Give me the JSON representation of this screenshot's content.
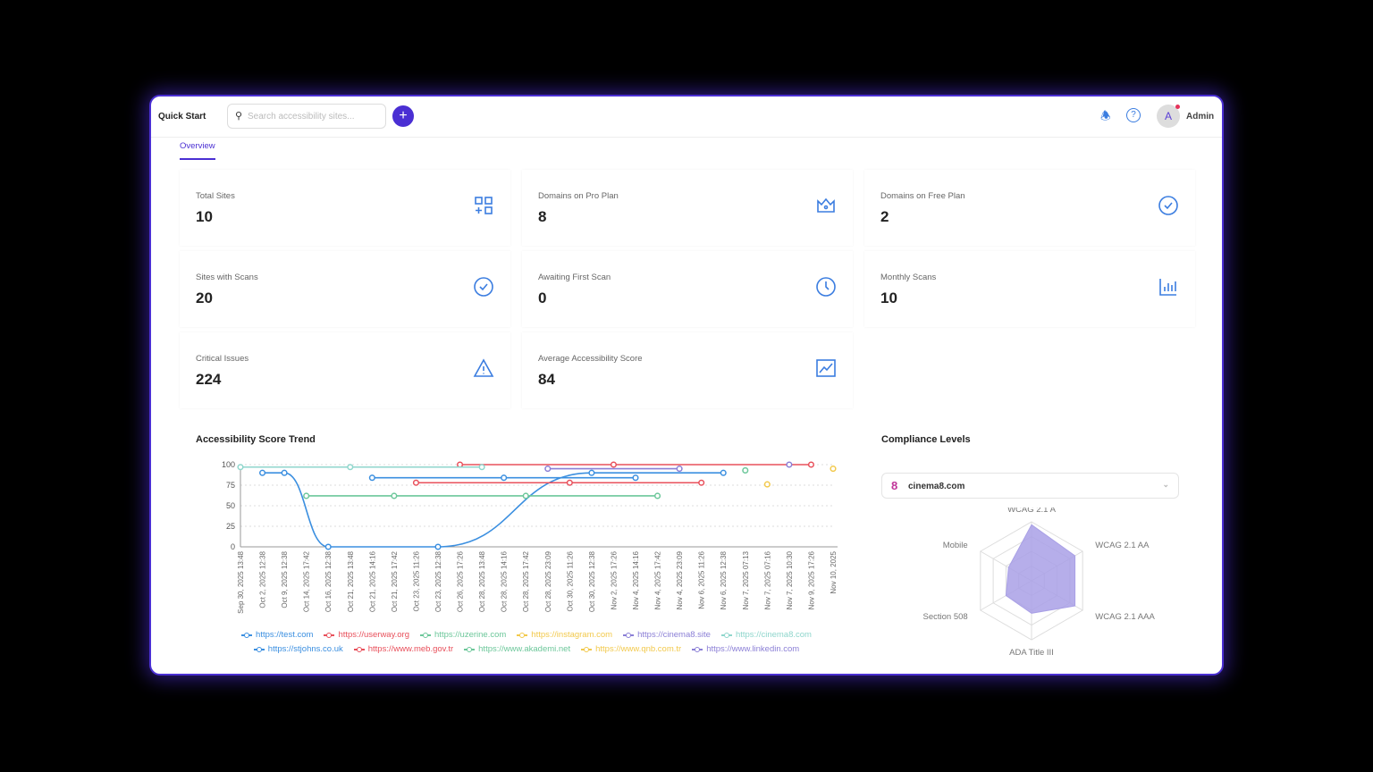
{
  "topbar": {
    "quick_start": "Quick Start",
    "search_placeholder": "Search accessibility sites...",
    "user": "Admin",
    "avatar_initial": "A"
  },
  "tabs": [
    {
      "label": "Overview",
      "active": true
    }
  ],
  "stats": [
    {
      "label": "Total Sites",
      "value": "10",
      "icon": "grid-plus-icon"
    },
    {
      "label": "Domains on Pro Plan",
      "value": "8",
      "icon": "crown-icon"
    },
    {
      "label": "Domains on Free Plan",
      "value": "2",
      "icon": "check-circle-icon"
    },
    {
      "label": "Sites with Scans",
      "value": "20",
      "icon": "check-circle-icon"
    },
    {
      "label": "Awaiting First Scan",
      "value": "0",
      "icon": "clock-icon"
    },
    {
      "label": "Monthly Scans",
      "value": "10",
      "icon": "bar-chart-icon"
    },
    {
      "label": "Critical Issues",
      "value": "224",
      "icon": "warning-icon"
    },
    {
      "label": "Average Accessibility Score",
      "value": "84",
      "icon": "line-chart-icon"
    }
  ],
  "colors": {
    "accent": "#4a2fd3",
    "icon": "#3b7de0"
  },
  "chart_data": [
    {
      "type": "line",
      "title": "Accessibility Score Trend",
      "ylim": [
        0,
        100
      ],
      "yticks": [
        0,
        25,
        50,
        75,
        100
      ],
      "grid": true,
      "legend": "bottom",
      "categories": [
        "Sep 30, 2025 13:48",
        "Oct 2, 2025 12:38",
        "Oct 9, 2025 12:38",
        "Oct 14, 2025 17:42",
        "Oct 16, 2025 12:38",
        "Oct 21, 2025 13:48",
        "Oct 21, 2025 14:16",
        "Oct 21, 2025 17:42",
        "Oct 23, 2025 11:26",
        "Oct 23, 2025 12:38",
        "Oct 26, 2025 17:26",
        "Oct 28, 2025 13:48",
        "Oct 28, 2025 14:16",
        "Oct 28, 2025 17:42",
        "Oct 28, 2025 23:09",
        "Oct 30, 2025 11:26",
        "Oct 30, 2025 12:38",
        "Nov 2, 2025 17:26",
        "Nov 4, 2025 14:16",
        "Nov 4, 2025 17:42",
        "Nov 4, 2025 23:09",
        "Nov 6, 2025 11:26",
        "Nov 6, 2025 12:38",
        "Nov 7, 2025 07:13",
        "Nov 7, 2025 07:16",
        "Nov 7, 2025 10:30",
        "Nov 9, 2025 17:26",
        "Nov 10, 2025"
      ],
      "series": [
        {
          "name": "https://test.com",
          "color": "#3b8fe0",
          "smooth": true,
          "points": [
            [
              1,
              90
            ],
            [
              2,
              90
            ],
            [
              4,
              0
            ],
            [
              9,
              0
            ],
            [
              16,
              90
            ],
            [
              22,
              90
            ]
          ]
        },
        {
          "name": "https://userway.org",
          "color": "#e8505b",
          "points": [
            [
              10,
              100
            ],
            [
              17,
              100
            ],
            [
              26,
              100
            ]
          ]
        },
        {
          "name": "https://uzerine.com",
          "color": "#6cc79a",
          "points": [
            [
              23,
              93
            ]
          ]
        },
        {
          "name": "https://instagram.com",
          "color": "#f2c94c",
          "points": [
            [
              27,
              95
            ]
          ]
        },
        {
          "name": "https://cinema8.site",
          "color": "#8b7fd6",
          "points": [
            [
              14,
              95
            ],
            [
              20,
              95
            ]
          ]
        },
        {
          "name": "https://cinema8.com",
          "color": "#8fd6cc",
          "points": [
            [
              0,
              97
            ],
            [
              5,
              97
            ],
            [
              11,
              97
            ]
          ]
        },
        {
          "name": "https://stjohns.co.uk",
          "color": "#3b8fe0",
          "points": [
            [
              6,
              84
            ],
            [
              12,
              84
            ],
            [
              18,
              84
            ]
          ]
        },
        {
          "name": "https://www.meb.gov.tr",
          "color": "#e8505b",
          "points": [
            [
              8,
              78
            ],
            [
              15,
              78
            ],
            [
              21,
              78
            ]
          ]
        },
        {
          "name": "https://www.akademi.net",
          "color": "#6cc79a",
          "points": [
            [
              3,
              62
            ],
            [
              7,
              62
            ],
            [
              13,
              62
            ],
            [
              19,
              62
            ]
          ]
        },
        {
          "name": "https://www.qnb.com.tr",
          "color": "#f2c94c",
          "points": [
            [
              24,
              76
            ]
          ]
        },
        {
          "name": "https://www.linkedin.com",
          "color": "#8b7fd6",
          "points": [
            [
              25,
              100
            ]
          ]
        }
      ]
    },
    {
      "type": "radar",
      "title": "Compliance Levels",
      "selected_site": "cinema8.com",
      "axes": [
        "WCAG 2.1 A",
        "WCAG 2.1 AA",
        "WCAG 2.1 AAA",
        "ADA Title III",
        "Section 508",
        "Mobile"
      ],
      "values": [
        95,
        85,
        85,
        55,
        50,
        45
      ],
      "max": 100,
      "color": "#a9a0e6"
    }
  ]
}
